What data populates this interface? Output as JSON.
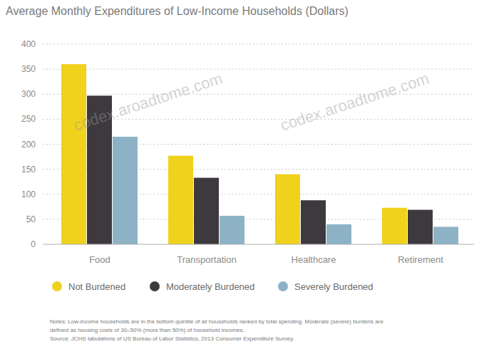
{
  "chart_data": {
    "type": "bar",
    "title": "Average Monthly Expenditures of Low-Income Households (Dollars)",
    "categories": [
      "Food",
      "Transportation",
      "Healthcare",
      "Retirement"
    ],
    "series": [
      {
        "name": "Not Burdened",
        "color": "#f0d11c",
        "values": [
          360,
          177,
          140,
          73
        ]
      },
      {
        "name": "Moderately Burdened",
        "color": "#3d393e",
        "values": [
          297,
          133,
          88,
          69
        ]
      },
      {
        "name": "Severely Burdened",
        "color": "#8db2c5",
        "values": [
          215,
          57,
          40,
          35
        ]
      }
    ],
    "ylim": [
      0,
      400
    ],
    "yticks": [
      0,
      50,
      100,
      150,
      200,
      250,
      300,
      350,
      400
    ],
    "grid": true,
    "legend": "bottom",
    "notes": [
      "Notes: Low-income households are in the bottom quintile of all households ranked by total spending. Moderate (severe) burdens are",
      "defined as housing costs of 30–50% (more than 50%) of household incomes."
    ],
    "source": "Source: JCHS tabulations of US Bureau of Labor Statistics, 2013 Consumer Expenditure Survey.",
    "annotations": [
      "codex.aroadtome.com",
      "codex.aroadtome.com"
    ]
  }
}
